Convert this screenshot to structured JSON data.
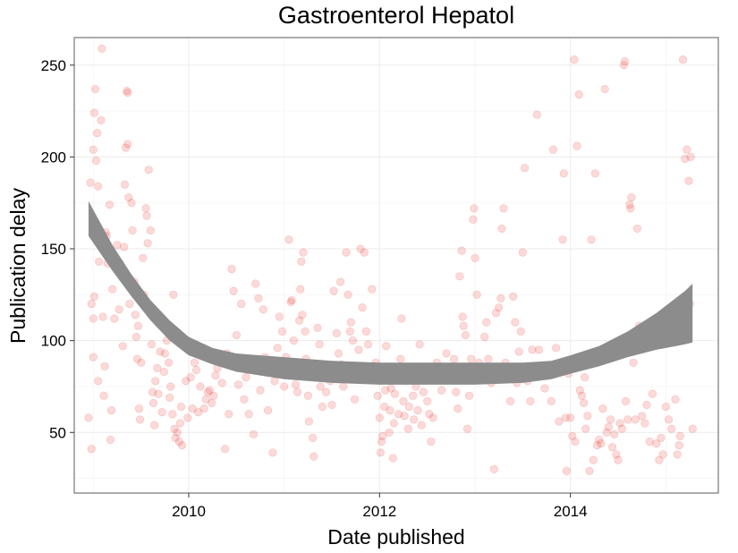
{
  "chart_data": {
    "type": "scatter",
    "title": "Gastroenterol Hepatol",
    "xlabel": "Date published",
    "ylabel": "Publication delay",
    "xlim": [
      2008.8,
      2015.55
    ],
    "ylim": [
      17,
      265
    ],
    "x_ticks": [
      2010,
      2012,
      2014
    ],
    "x_tick_labels": [
      "2010",
      "2012",
      "2014"
    ],
    "y_ticks": [
      50,
      100,
      150,
      200,
      250
    ],
    "y_tick_labels": [
      "50",
      "100",
      "150",
      "200",
      "250"
    ],
    "grid": true,
    "point_color": "#e8312a",
    "point_opacity": 0.18,
    "band_color": "#8c8c8c",
    "points": [
      [
        2008.95,
        58
      ],
      [
        2008.97,
        186
      ],
      [
        2008.98,
        120
      ],
      [
        2009.0,
        112
      ],
      [
        2009.0,
        204
      ],
      [
        2009.01,
        224
      ],
      [
        2009.02,
        237
      ],
      [
        2009.03,
        198
      ],
      [
        2009.04,
        213
      ],
      [
        2009.05,
        184
      ],
      [
        2008.98,
        41
      ],
      [
        2009.0,
        91
      ],
      [
        2009.01,
        124
      ],
      [
        2009.05,
        78
      ],
      [
        2009.06,
        143
      ],
      [
        2009.08,
        220
      ],
      [
        2009.09,
        259
      ],
      [
        2009.1,
        156
      ],
      [
        2009.1,
        113
      ],
      [
        2009.11,
        70
      ],
      [
        2009.12,
        86
      ],
      [
        2009.13,
        159
      ],
      [
        2009.14,
        157
      ],
      [
        2009.15,
        142
      ],
      [
        2009.16,
        145
      ],
      [
        2009.17,
        174
      ],
      [
        2009.18,
        46
      ],
      [
        2009.19,
        62
      ],
      [
        2009.2,
        128
      ],
      [
        2009.22,
        112
      ],
      [
        2009.25,
        152
      ],
      [
        2009.27,
        117
      ],
      [
        2009.28,
        142
      ],
      [
        2009.29,
        139
      ],
      [
        2009.31,
        97
      ],
      [
        2009.32,
        151
      ],
      [
        2009.33,
        185
      ],
      [
        2009.34,
        205
      ],
      [
        2009.35,
        236
      ],
      [
        2009.36,
        235
      ],
      [
        2009.36,
        207
      ],
      [
        2009.37,
        178
      ],
      [
        2009.38,
        120
      ],
      [
        2009.4,
        175
      ],
      [
        2009.41,
        160
      ],
      [
        2009.43,
        132
      ],
      [
        2009.44,
        114
      ],
      [
        2009.45,
        102
      ],
      [
        2009.46,
        90
      ],
      [
        2009.47,
        108
      ],
      [
        2009.48,
        63
      ],
      [
        2009.49,
        57
      ],
      [
        2009.5,
        88
      ],
      [
        2009.52,
        145
      ],
      [
        2009.53,
        125
      ],
      [
        2009.55,
        172
      ],
      [
        2009.56,
        168
      ],
      [
        2009.57,
        153
      ],
      [
        2009.58,
        193
      ],
      [
        2009.6,
        160
      ],
      [
        2009.61,
        98
      ],
      [
        2009.62,
        72
      ],
      [
        2009.63,
        66
      ],
      [
        2009.64,
        54
      ],
      [
        2009.65,
        78
      ],
      [
        2009.67,
        85
      ],
      [
        2009.68,
        71
      ],
      [
        2009.7,
        94
      ],
      [
        2009.72,
        61
      ],
      [
        2009.74,
        83
      ],
      [
        2009.75,
        93
      ],
      [
        2009.77,
        100
      ],
      [
        2009.79,
        88
      ],
      [
        2009.8,
        69
      ],
      [
        2009.81,
        75
      ],
      [
        2009.83,
        60
      ],
      [
        2009.84,
        125
      ],
      [
        2009.85,
        52
      ],
      [
        2009.86,
        47
      ],
      [
        2009.88,
        50
      ],
      [
        2009.9,
        45
      ],
      [
        2009.91,
        55
      ],
      [
        2009.92,
        64
      ],
      [
        2009.93,
        43
      ],
      [
        2009.95,
        97
      ],
      [
        2009.97,
        78
      ],
      [
        2009.99,
        58
      ],
      [
        2010.02,
        80
      ],
      [
        2010.04,
        63
      ],
      [
        2010.06,
        88
      ],
      [
        2010.08,
        84
      ],
      [
        2010.1,
        61
      ],
      [
        2010.12,
        75
      ],
      [
        2010.14,
        95
      ],
      [
        2010.16,
        63
      ],
      [
        2010.18,
        68
      ],
      [
        2010.2,
        72
      ],
      [
        2010.22,
        73
      ],
      [
        2010.24,
        66
      ],
      [
        2010.26,
        70
      ],
      [
        2010.28,
        81
      ],
      [
        2010.3,
        85
      ],
      [
        2010.33,
        88
      ],
      [
        2010.35,
        77
      ],
      [
        2010.38,
        41
      ],
      [
        2010.4,
        93
      ],
      [
        2010.42,
        60
      ],
      [
        2010.45,
        139
      ],
      [
        2010.47,
        127
      ],
      [
        2010.5,
        103
      ],
      [
        2010.52,
        76
      ],
      [
        2010.55,
        120
      ],
      [
        2010.58,
        68
      ],
      [
        2010.6,
        80
      ],
      [
        2010.63,
        60
      ],
      [
        2010.65,
        85
      ],
      [
        2010.68,
        49
      ],
      [
        2010.7,
        131
      ],
      [
        2010.73,
        123
      ],
      [
        2010.75,
        73
      ],
      [
        2010.78,
        117
      ],
      [
        2010.8,
        91
      ],
      [
        2010.83,
        62
      ],
      [
        2010.86,
        83
      ],
      [
        2010.88,
        39
      ],
      [
        2010.9,
        78
      ],
      [
        2010.93,
        96
      ],
      [
        2010.95,
        113
      ],
      [
        2010.98,
        105
      ],
      [
        2011.0,
        75
      ],
      [
        2011.02,
        91
      ],
      [
        2011.05,
        155
      ],
      [
        2011.07,
        121
      ],
      [
        2011.08,
        122
      ],
      [
        2011.1,
        100
      ],
      [
        2011.12,
        76
      ],
      [
        2011.14,
        72
      ],
      [
        2011.16,
        111
      ],
      [
        2011.17,
        128
      ],
      [
        2011.18,
        143
      ],
      [
        2011.19,
        114
      ],
      [
        2011.2,
        148
      ],
      [
        2011.22,
        105
      ],
      [
        2011.23,
        90
      ],
      [
        2011.25,
        70
      ],
      [
        2011.26,
        56
      ],
      [
        2011.28,
        84
      ],
      [
        2011.3,
        47
      ],
      [
        2011.31,
        37
      ],
      [
        2011.33,
        82
      ],
      [
        2011.35,
        107
      ],
      [
        2011.37,
        98
      ],
      [
        2011.38,
        75
      ],
      [
        2011.4,
        64
      ],
      [
        2011.42,
        87
      ],
      [
        2011.44,
        72
      ],
      [
        2011.46,
        85
      ],
      [
        2011.48,
        78
      ],
      [
        2011.5,
        65
      ],
      [
        2011.52,
        127
      ],
      [
        2011.55,
        104
      ],
      [
        2011.57,
        93
      ],
      [
        2011.59,
        132
      ],
      [
        2011.6,
        87
      ],
      [
        2011.62,
        75
      ],
      [
        2011.65,
        148
      ],
      [
        2011.67,
        125
      ],
      [
        2011.69,
        105
      ],
      [
        2011.7,
        110
      ],
      [
        2011.72,
        100
      ],
      [
        2011.74,
        68
      ],
      [
        2011.76,
        86
      ],
      [
        2011.78,
        95
      ],
      [
        2011.8,
        150
      ],
      [
        2011.82,
        118
      ],
      [
        2011.84,
        148
      ],
      [
        2011.86,
        105
      ],
      [
        2011.88,
        98
      ],
      [
        2011.9,
        80
      ],
      [
        2011.92,
        128
      ],
      [
        2011.94,
        84
      ],
      [
        2011.96,
        88
      ],
      [
        2011.98,
        70
      ],
      [
        2012.0,
        58
      ],
      [
        2012.01,
        39
      ],
      [
        2012.02,
        45
      ],
      [
        2012.03,
        48
      ],
      [
        2012.05,
        64
      ],
      [
        2012.06,
        73
      ],
      [
        2012.07,
        97
      ],
      [
        2012.08,
        82
      ],
      [
        2012.1,
        50
      ],
      [
        2012.11,
        62
      ],
      [
        2012.12,
        74
      ],
      [
        2012.14,
        36
      ],
      [
        2012.15,
        55
      ],
      [
        2012.16,
        71
      ],
      [
        2012.18,
        83
      ],
      [
        2012.2,
        60
      ],
      [
        2012.22,
        90
      ],
      [
        2012.23,
        112
      ],
      [
        2012.25,
        67
      ],
      [
        2012.26,
        59
      ],
      [
        2012.28,
        78
      ],
      [
        2012.3,
        52
      ],
      [
        2012.31,
        64
      ],
      [
        2012.33,
        85
      ],
      [
        2012.35,
        70
      ],
      [
        2012.36,
        57
      ],
      [
        2012.38,
        75
      ],
      [
        2012.4,
        62
      ],
      [
        2012.42,
        98
      ],
      [
        2012.44,
        54
      ],
      [
        2012.46,
        72
      ],
      [
        2012.48,
        80
      ],
      [
        2012.5,
        67
      ],
      [
        2012.52,
        60
      ],
      [
        2012.54,
        45
      ],
      [
        2012.56,
        58
      ],
      [
        2012.6,
        88
      ],
      [
        2012.65,
        73
      ],
      [
        2012.7,
        93
      ],
      [
        2012.75,
        84
      ],
      [
        2012.78,
        90
      ],
      [
        2012.8,
        72
      ],
      [
        2012.82,
        63
      ],
      [
        2012.84,
        135
      ],
      [
        2012.86,
        149
      ],
      [
        2012.87,
        113
      ],
      [
        2012.88,
        108
      ],
      [
        2012.9,
        103
      ],
      [
        2012.92,
        52
      ],
      [
        2012.94,
        70
      ],
      [
        2012.96,
        90
      ],
      [
        2012.98,
        166
      ],
      [
        2012.99,
        172
      ],
      [
        2013.0,
        145
      ],
      [
        2013.02,
        125
      ],
      [
        2013.04,
        88
      ],
      [
        2013.07,
        80
      ],
      [
        2013.1,
        102
      ],
      [
        2013.12,
        110
      ],
      [
        2013.14,
        90
      ],
      [
        2013.17,
        77
      ],
      [
        2013.2,
        30
      ],
      [
        2013.22,
        115
      ],
      [
        2013.25,
        118
      ],
      [
        2013.27,
        123
      ],
      [
        2013.28,
        161
      ],
      [
        2013.3,
        172
      ],
      [
        2013.32,
        88
      ],
      [
        2013.35,
        82
      ],
      [
        2013.37,
        67
      ],
      [
        2013.4,
        124
      ],
      [
        2013.42,
        110
      ],
      [
        2013.44,
        77
      ],
      [
        2013.46,
        94
      ],
      [
        2013.48,
        105
      ],
      [
        2013.5,
        148
      ],
      [
        2013.52,
        194
      ],
      [
        2013.55,
        78
      ],
      [
        2013.58,
        67
      ],
      [
        2013.6,
        95
      ],
      [
        2013.62,
        86
      ],
      [
        2013.65,
        223
      ],
      [
        2013.67,
        95
      ],
      [
        2013.7,
        82
      ],
      [
        2013.73,
        74
      ],
      [
        2013.75,
        85
      ],
      [
        2013.8,
        67
      ],
      [
        2013.82,
        204
      ],
      [
        2013.85,
        96
      ],
      [
        2013.88,
        56
      ],
      [
        2013.9,
        87
      ],
      [
        2013.92,
        155
      ],
      [
        2013.93,
        191
      ],
      [
        2013.95,
        58
      ],
      [
        2013.96,
        29
      ],
      [
        2013.98,
        82
      ],
      [
        2014.0,
        58
      ],
      [
        2014.02,
        48
      ],
      [
        2014.04,
        253
      ],
      [
        2014.05,
        45
      ],
      [
        2014.07,
        206
      ],
      [
        2014.09,
        234
      ],
      [
        2014.1,
        73
      ],
      [
        2014.12,
        70
      ],
      [
        2014.14,
        66
      ],
      [
        2014.15,
        80
      ],
      [
        2014.16,
        52
      ],
      [
        2014.18,
        59
      ],
      [
        2014.2,
        29
      ],
      [
        2014.22,
        155
      ],
      [
        2014.24,
        35
      ],
      [
        2014.26,
        191
      ],
      [
        2014.28,
        43
      ],
      [
        2014.3,
        46
      ],
      [
        2014.32,
        44
      ],
      [
        2014.34,
        63
      ],
      [
        2014.36,
        237
      ],
      [
        2014.38,
        50
      ],
      [
        2014.4,
        53
      ],
      [
        2014.42,
        57
      ],
      [
        2014.44,
        42
      ],
      [
        2014.46,
        49
      ],
      [
        2014.48,
        38
      ],
      [
        2014.5,
        35
      ],
      [
        2014.52,
        55
      ],
      [
        2014.54,
        52
      ],
      [
        2014.56,
        250
      ],
      [
        2014.57,
        252
      ],
      [
        2014.58,
        67
      ],
      [
        2014.6,
        57
      ],
      [
        2014.62,
        174
      ],
      [
        2014.63,
        172
      ],
      [
        2014.64,
        178
      ],
      [
        2014.66,
        88
      ],
      [
        2014.68,
        57
      ],
      [
        2014.7,
        161
      ],
      [
        2014.72,
        108
      ],
      [
        2014.75,
        59
      ],
      [
        2014.78,
        55
      ],
      [
        2014.8,
        65
      ],
      [
        2014.83,
        45
      ],
      [
        2014.86,
        71
      ],
      [
        2014.9,
        44
      ],
      [
        2014.93,
        35
      ],
      [
        2014.95,
        47
      ],
      [
        2014.97,
        38
      ],
      [
        2015.0,
        64
      ],
      [
        2015.03,
        57
      ],
      [
        2015.06,
        52
      ],
      [
        2015.1,
        68
      ],
      [
        2015.12,
        38
      ],
      [
        2015.15,
        48
      ],
      [
        2015.18,
        253
      ],
      [
        2015.2,
        199
      ],
      [
        2015.22,
        204
      ],
      [
        2015.24,
        187
      ],
      [
        2015.26,
        200
      ],
      [
        2015.28,
        52
      ],
      [
        2015.25,
        120
      ],
      [
        2015.14,
        43
      ]
    ],
    "smooth_band": {
      "x": [
        2008.95,
        2009.2,
        2009.4,
        2009.6,
        2009.8,
        2010.0,
        2010.25,
        2010.5,
        2010.75,
        2011.0,
        2011.5,
        2012.0,
        2012.5,
        2013.0,
        2013.5,
        2013.8,
        2014.0,
        2014.3,
        2014.6,
        2014.9,
        2015.2,
        2015.28
      ],
      "upper": [
        176,
        152,
        136,
        122,
        111,
        102,
        96,
        93,
        92,
        91,
        89,
        88,
        88,
        88,
        88,
        89,
        92,
        97,
        105,
        115,
        127,
        131
      ],
      "lower": [
        157,
        138,
        124,
        111,
        100,
        92,
        87,
        83,
        81,
        79,
        77,
        76,
        76,
        76,
        77,
        79,
        82,
        86,
        91,
        95,
        98,
        99
      ]
    }
  }
}
